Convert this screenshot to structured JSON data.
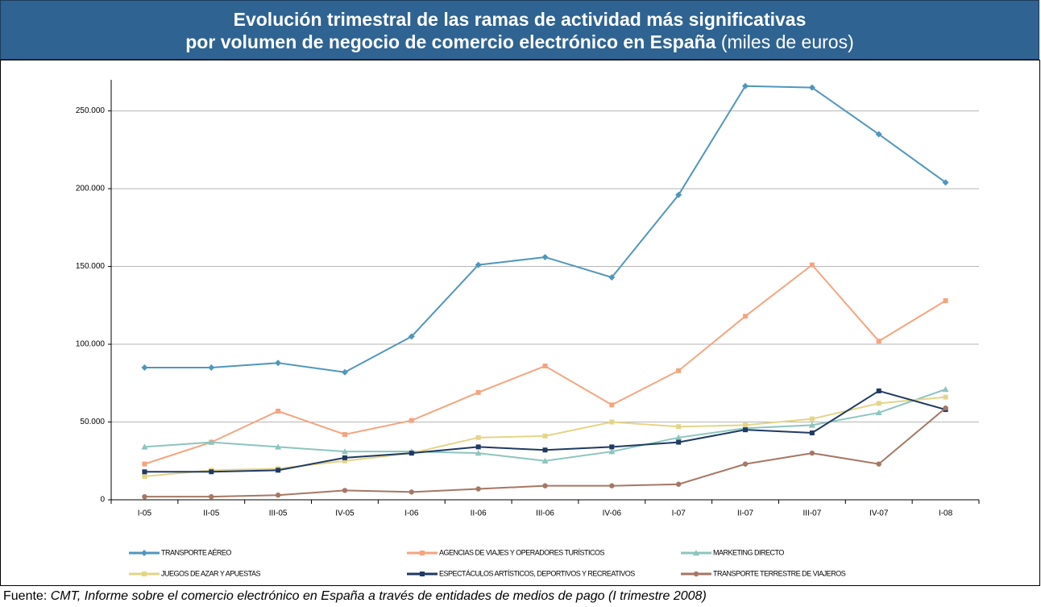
{
  "header": {
    "title_line1": "Evolución trimestral de las ramas de actividad más significativas",
    "title_line2": "por volumen de negocio de comercio electrónico en España",
    "title_unit": "(miles de euros)"
  },
  "chart_data": {
    "type": "line",
    "categories": [
      "I-05",
      "II-05",
      "III-05",
      "IV-05",
      "I-06",
      "II-06",
      "III-06",
      "IV-06",
      "I-07",
      "II-07",
      "III-07",
      "IV-07",
      "I-08"
    ],
    "ylim": [
      0,
      270000
    ],
    "yticks": [
      0,
      {
        "value": 50000,
        "label": "50.000"
      },
      {
        "value": 100000,
        "label": "100.000"
      },
      {
        "value": 150000,
        "label": "150.000"
      },
      {
        "value": 200000,
        "label": "200.000"
      },
      {
        "value": 250000,
        "label": "250.000"
      }
    ],
    "grid": true,
    "legend": "bottom",
    "series": [
      {
        "name": "TRANSPORTE AÉREO",
        "color": "#4f96bd",
        "marker": "diamond",
        "values": [
          85000,
          85000,
          88000,
          82000,
          105000,
          151000,
          156000,
          143000,
          196000,
          266000,
          265000,
          235000,
          204000
        ]
      },
      {
        "name": "AGENCIAS DE VIAJES Y OPERADORES TURÍSTICOS",
        "color": "#f5a47e",
        "marker": "square",
        "values": [
          23000,
          37000,
          57000,
          42000,
          51000,
          69000,
          86000,
          61000,
          83000,
          118000,
          151000,
          102000,
          128000
        ]
      },
      {
        "name": "MARKETING DIRECTO",
        "color": "#8cc5be",
        "marker": "triangle",
        "values": [
          34000,
          37000,
          34000,
          31000,
          31000,
          30000,
          25000,
          31000,
          40000,
          46000,
          48000,
          56000,
          71000
        ]
      },
      {
        "name": "JUEGOS DE AZAR Y APUESTAS",
        "color": "#e4d487",
        "marker": "square",
        "values": [
          15000,
          19000,
          20000,
          25000,
          30000,
          40000,
          41000,
          50000,
          47000,
          48000,
          52000,
          62000,
          66000
        ]
      },
      {
        "name": "ESPECTÁCULOS ARTÍSTICOS, DEPORTIVOS Y RECREATIVOS",
        "color": "#1f3a63",
        "marker": "square",
        "values": [
          18000,
          18000,
          19000,
          27000,
          30000,
          34000,
          32000,
          34000,
          37000,
          45000,
          43000,
          70000,
          58000
        ]
      },
      {
        "name": "TRANSPORTE TERRESTRE DE VIAJEROS",
        "color": "#a67764",
        "marker": "circle",
        "values": [
          2000,
          2000,
          3000,
          6000,
          5000,
          7000,
          9000,
          9000,
          10000,
          23000,
          30000,
          23000,
          59000
        ]
      }
    ]
  },
  "source": {
    "label": "Fuente:",
    "text": "CMT, Informe sobre el comercio electrónico en España a través de entidades de medios de pago (I trimestre 2008)"
  }
}
